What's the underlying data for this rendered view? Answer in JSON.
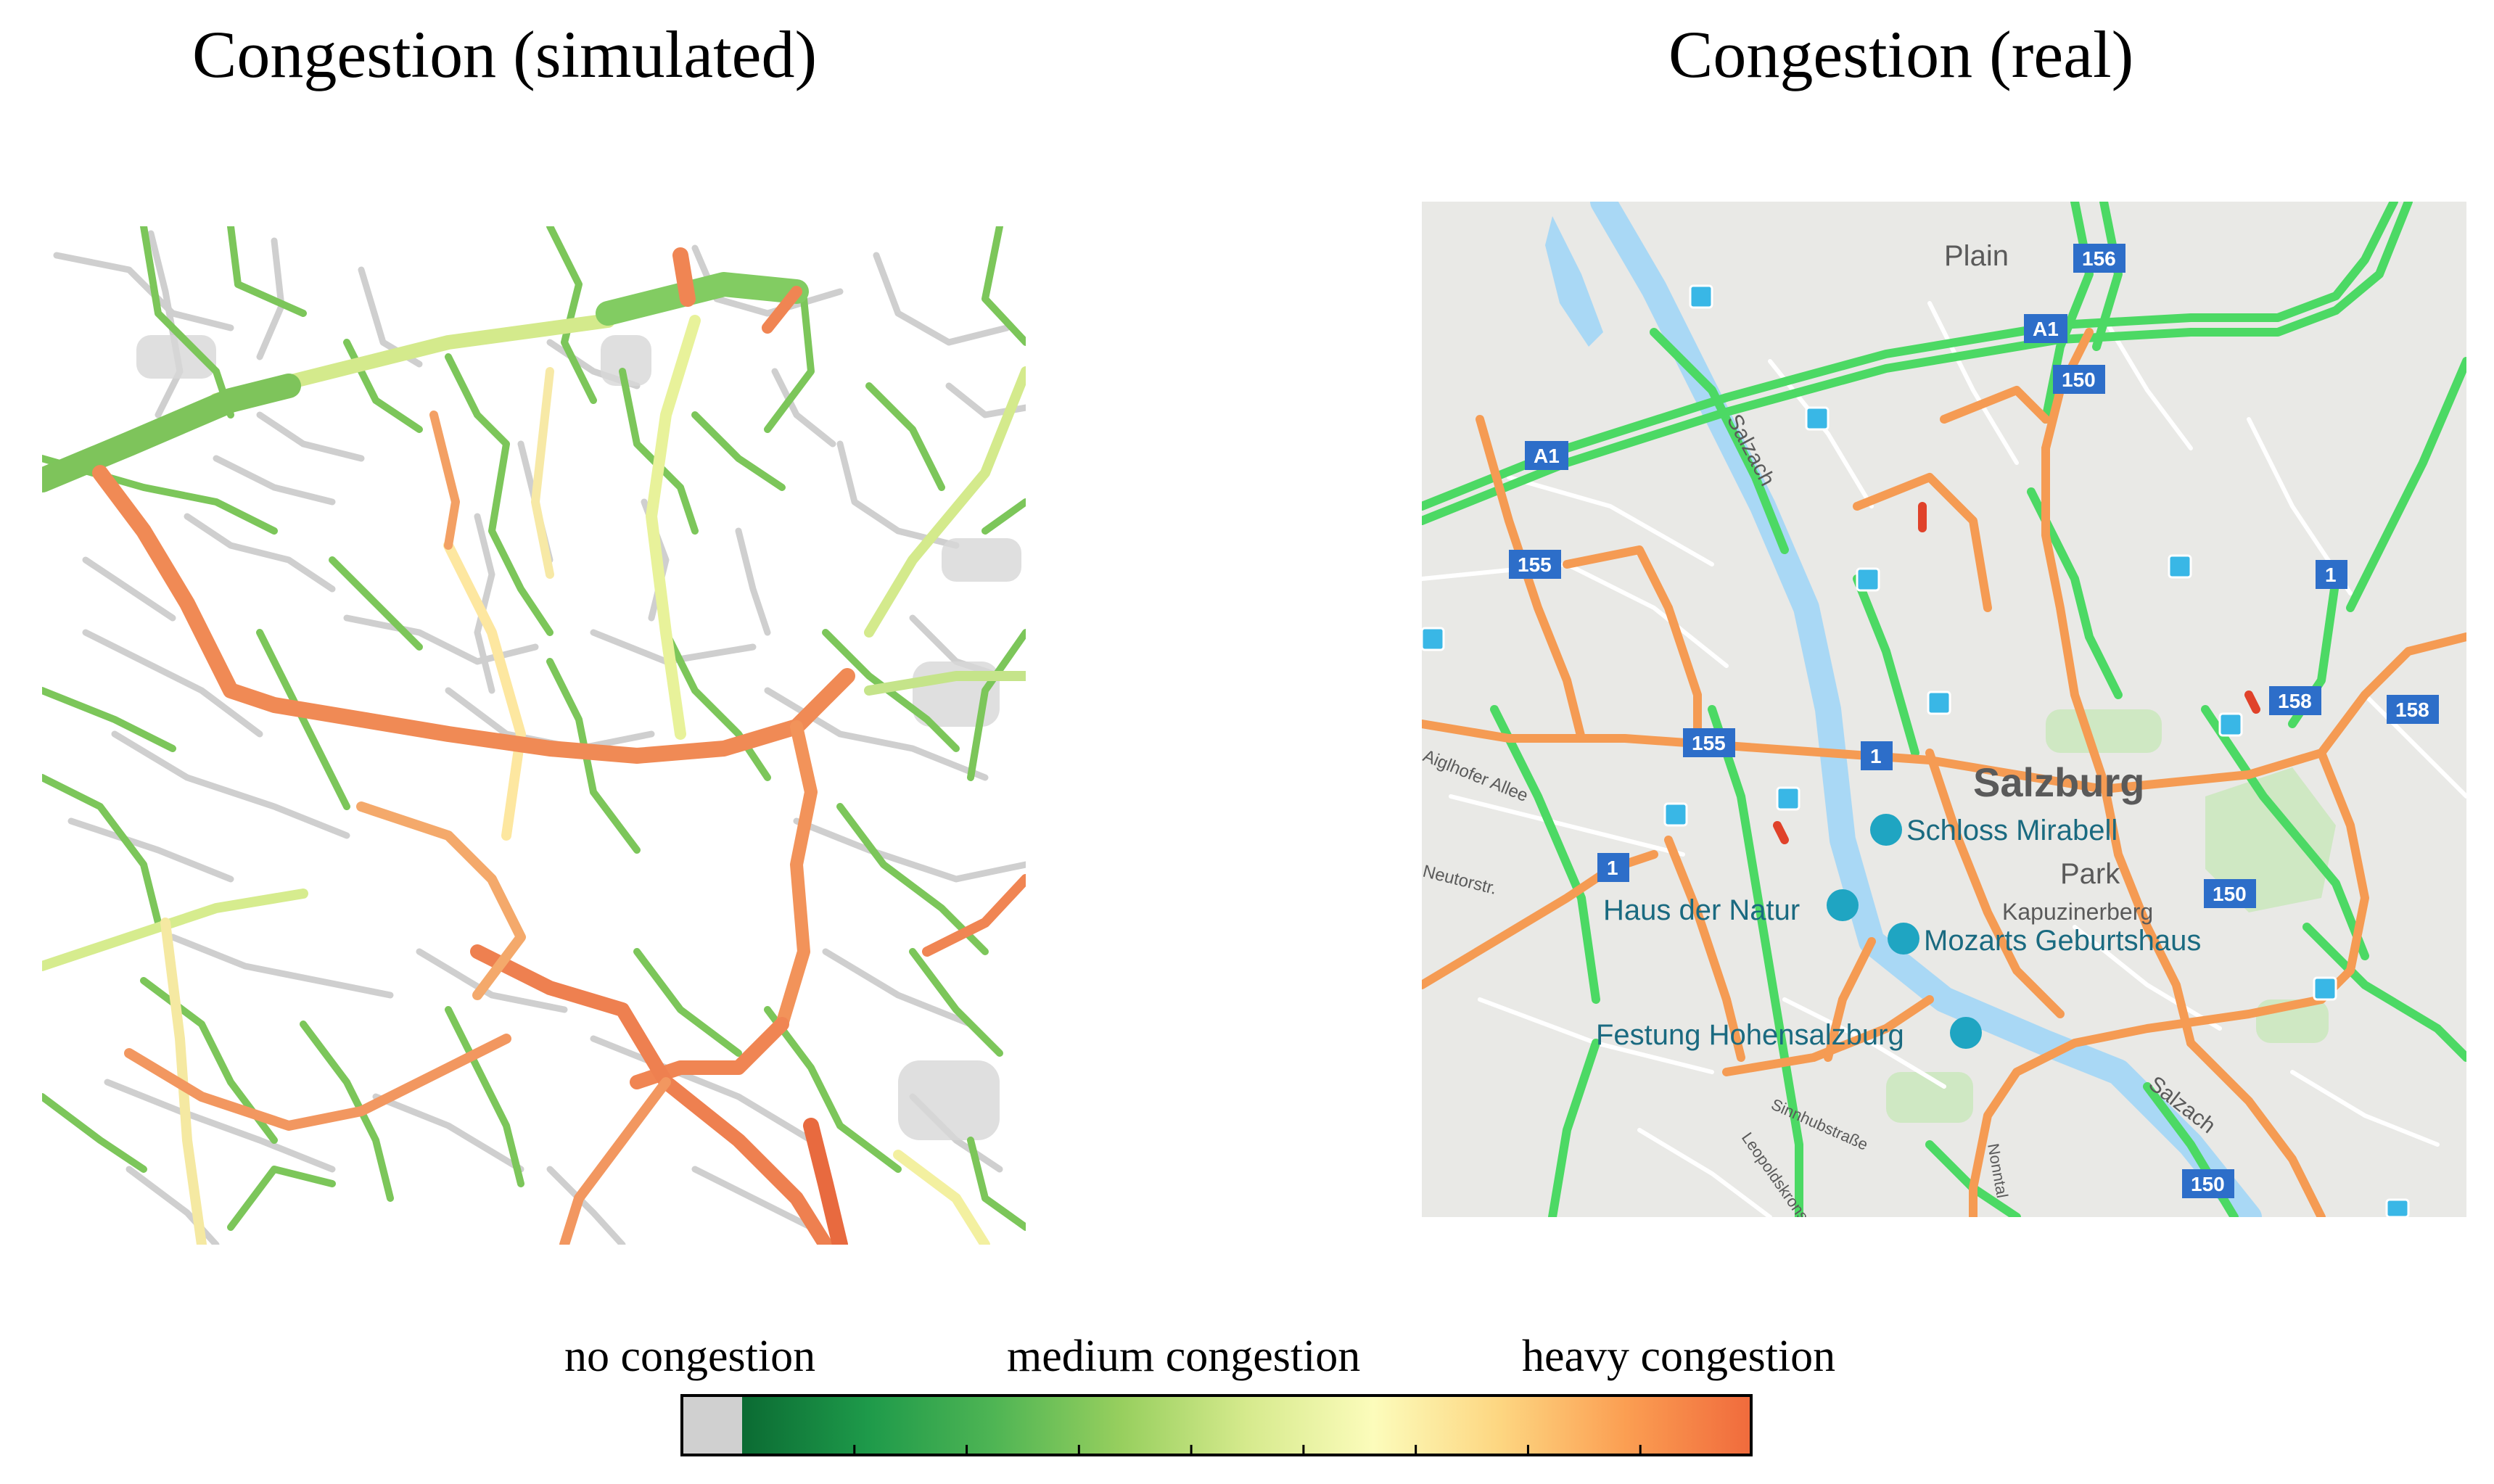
{
  "titles": {
    "simulated": "Congestion (simulated)",
    "real": "Congestion (real)"
  },
  "legend": {
    "no": "no congestion",
    "medium": "medium congestion",
    "heavy": "heavy congestion",
    "stops": [
      "#d0d0d0",
      "#0b6b33",
      "#1e9a4a",
      "#4fb554",
      "#97cf5e",
      "#d6ea8d",
      "#fcfcbb",
      "#fdd681",
      "#fb9e52",
      "#f06a3c"
    ],
    "tick_count": 8
  },
  "real_map": {
    "places": [
      "Plain",
      "Salzburg",
      "Park",
      "Kapuzinerberg",
      "Salzach",
      "Salzach"
    ],
    "pois": [
      "Schloss Mirabell",
      "Haus der Natur",
      "Mozarts Geburtshaus",
      "Festung Hohensalzburg"
    ],
    "streets": [
      "Aiglhofer Allee",
      "Neutorstr.",
      "Sinnhubstraße",
      "Leopoldskronstraße",
      "Nonntal"
    ],
    "shields": [
      "156",
      "A1",
      "150",
      "A1",
      "155",
      "1",
      "158",
      "158",
      "155",
      "1",
      "1",
      "150",
      "150"
    ]
  },
  "colors": {
    "free": "#4cd964",
    "slow": "#f59b53",
    "jam": "#e0422a",
    "road": "#c8c8c8",
    "shield": "#2d6ec9",
    "river": "#a9d8f5"
  }
}
